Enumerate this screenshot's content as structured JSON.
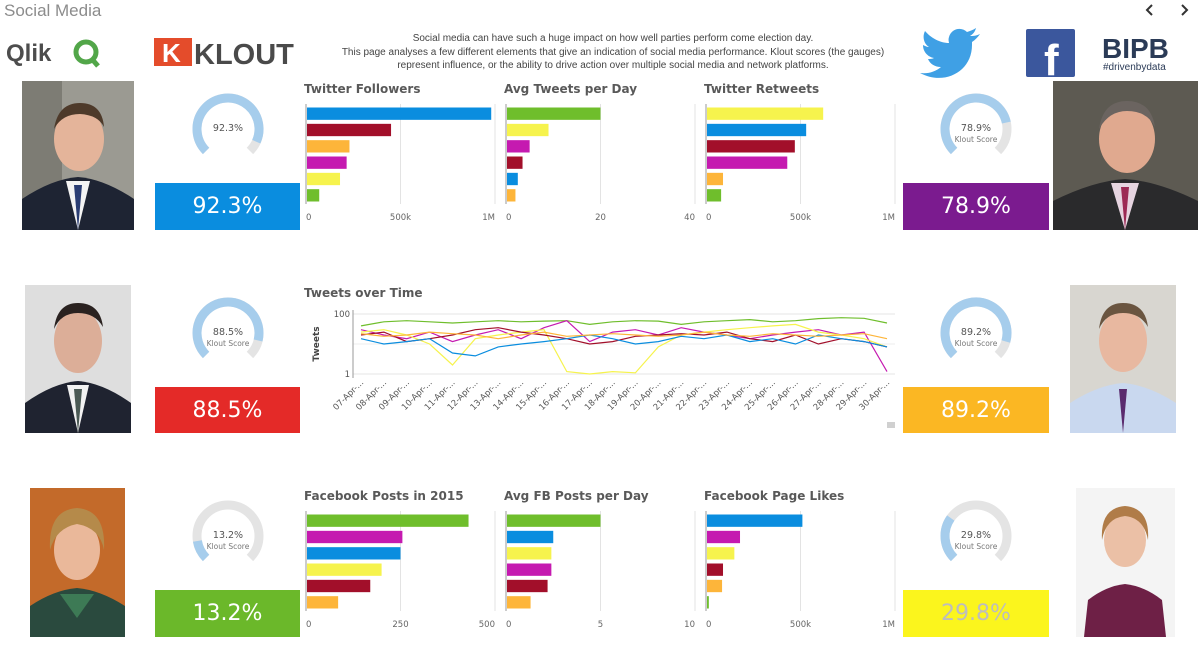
{
  "sheet": {
    "title": "Social Media",
    "prev_label": "‹",
    "next_label": "›"
  },
  "description": {
    "line1": "Social media can have such a huge impact on how well parties perform come election day.",
    "line2": "This page analyses a few different elements that give an indication of social media performance. Klout scores (the gauges)",
    "line3": "represent influence, or the ability to drive action over multiple social media and network platforms."
  },
  "logos": {
    "qlik": "Qlik",
    "klout_k": "K",
    "klout": "KLOUT",
    "facebook": "f",
    "bipb": "BIPB",
    "bipb_tag": "#drivenbydata"
  },
  "colors": {
    "blue": "#0a8ddf",
    "darkred": "#a20f2a",
    "orange": "#fdb53a",
    "magenta": "#c51ab0",
    "yellow": "#f6f34d",
    "green": "#6fbe2c",
    "red": "#e42a28",
    "amber": "#fbb723",
    "purple": "#7b1b8f",
    "lime": "#6bb82a",
    "brightyellow": "#fbf51d"
  },
  "klout": {
    "p1": {
      "gauge_label": "92.3%",
      "sublabel": "",
      "value": 0.923,
      "kpi": "92.3%"
    },
    "p2": {
      "gauge_label": "78.9%",
      "sublabel": "Klout Score",
      "value": 0.789,
      "kpi": "78.9%"
    },
    "p3": {
      "gauge_label": "88.5%",
      "sublabel": "Klout Score",
      "value": 0.885,
      "kpi": "88.5%"
    },
    "p4": {
      "gauge_label": "89.2%",
      "sublabel": "Klout Score",
      "value": 0.892,
      "kpi": "89.2%"
    },
    "p5": {
      "gauge_label": "13.2%",
      "sublabel": "Klout Score",
      "value": 0.132,
      "kpi": "13.2%"
    },
    "p6": {
      "gauge_label": "29.8%",
      "sublabel": "Klout Score",
      "value": 0.298,
      "kpi": "29.8%"
    }
  },
  "chart_data": [
    {
      "id": "twitter-followers",
      "type": "bar",
      "title": "Twitter Followers",
      "orientation": "horizontal",
      "xlim": [
        0,
        1000000
      ],
      "ticks": [
        0,
        500000,
        1000000
      ],
      "tick_labels": [
        "0",
        "500k",
        "1M"
      ],
      "values": [
        980000,
        450000,
        230000,
        215000,
        180000,
        70000
      ],
      "bar_colors": [
        "#0a8ddf",
        "#a20f2a",
        "#fdb53a",
        "#c51ab0",
        "#f6f34d",
        "#6fbe2c"
      ]
    },
    {
      "id": "avg-tweets",
      "type": "bar",
      "title": "Avg Tweets per Day",
      "orientation": "horizontal",
      "xlim": [
        0,
        40
      ],
      "ticks": [
        0,
        20,
        40
      ],
      "tick_labels": [
        "0",
        "20",
        "40"
      ],
      "values": [
        20,
        9,
        5,
        3.5,
        2.5,
        2
      ],
      "bar_colors": [
        "#6fbe2c",
        "#f6f34d",
        "#c51ab0",
        "#a20f2a",
        "#0a8ddf",
        "#fdb53a"
      ]
    },
    {
      "id": "twitter-retweets",
      "type": "bar",
      "title": "Twitter Retweets",
      "orientation": "horizontal",
      "xlim": [
        0,
        1000000
      ],
      "ticks": [
        0,
        500000,
        1000000
      ],
      "tick_labels": [
        "0",
        "500k",
        "1M"
      ],
      "values": [
        620000,
        530000,
        470000,
        430000,
        90000,
        80000
      ],
      "bar_colors": [
        "#f6f34d",
        "#0a8ddf",
        "#a20f2a",
        "#c51ab0",
        "#fdb53a",
        "#6fbe2c"
      ]
    },
    {
      "id": "tweets-over-time",
      "type": "line",
      "title": "Tweets over Time",
      "ylabel": "Tweets",
      "y_scale": "log",
      "ylim": [
        1,
        100
      ],
      "y_tick_labels": [
        "1",
        "100"
      ],
      "categories": [
        "07-Apr-...",
        "08-Apr-...",
        "09-Apr-...",
        "10-Apr-...",
        "11-Apr-...",
        "12-Apr-...",
        "13-Apr-...",
        "14-Apr-...",
        "15-Apr-...",
        "16-Apr-...",
        "17-Apr-...",
        "18-Apr-...",
        "19-Apr-...",
        "20-Apr-...",
        "21-Apr-...",
        "22-Apr-...",
        "23-Apr-...",
        "24-Apr-...",
        "25-Apr-...",
        "26-Apr-...",
        "27-Apr-...",
        "28-Apr-...",
        "29-Apr-...",
        "30-Apr-..."
      ],
      "series": [
        {
          "name": "green",
          "color": "#6fbe2c",
          "values": [
            40,
            55,
            60,
            55,
            50,
            55,
            60,
            55,
            58,
            60,
            45,
            55,
            60,
            58,
            45,
            55,
            60,
            65,
            55,
            60,
            70,
            75,
            72,
            50
          ]
        },
        {
          "name": "magenta",
          "color": "#c51ab0",
          "values": [
            30,
            20,
            15,
            25,
            12,
            20,
            30,
            15,
            35,
            60,
            12,
            25,
            30,
            20,
            35,
            25,
            20,
            15,
            20,
            25,
            30,
            20,
            25,
            1.2
          ]
        },
        {
          "name": "yellow",
          "color": "#f6f34d",
          "values": [
            25,
            30,
            20,
            10,
            2,
            15,
            20,
            25,
            30,
            1.2,
            1,
            1.2,
            1.1,
            8,
            20,
            25,
            30,
            35,
            40,
            45,
            25,
            20,
            15,
            8
          ]
        },
        {
          "name": "darkred",
          "color": "#a20f2a",
          "values": [
            20,
            25,
            12,
            15,
            20,
            30,
            35,
            25,
            20,
            15,
            10,
            12,
            18,
            20,
            22,
            20,
            25,
            15,
            12,
            20,
            10,
            15,
            12,
            8
          ]
        },
        {
          "name": "blue",
          "color": "#0a8ddf",
          "values": [
            15,
            10,
            12,
            15,
            5,
            4,
            8,
            10,
            12,
            15,
            20,
            15,
            10,
            12,
            18,
            15,
            20,
            12,
            15,
            10,
            20,
            15,
            12,
            8
          ]
        },
        {
          "name": "orange",
          "color": "#fdb53a",
          "values": [
            22,
            18,
            20,
            25,
            22,
            20,
            15,
            20,
            25,
            18,
            20,
            22,
            20,
            18,
            20,
            25,
            20,
            18,
            22,
            20,
            18,
            20,
            22,
            15
          ]
        }
      ]
    },
    {
      "id": "facebook-posts",
      "type": "bar",
      "title": "Facebook Posts in 2015",
      "orientation": "horizontal",
      "xlim": [
        0,
        500
      ],
      "ticks": [
        0,
        250,
        500
      ],
      "tick_labels": [
        "0",
        "250",
        "500"
      ],
      "values": [
        430,
        255,
        250,
        200,
        170,
        85
      ],
      "bar_colors": [
        "#6fbe2c",
        "#c51ab0",
        "#0a8ddf",
        "#f6f34d",
        "#a20f2a",
        "#fdb53a"
      ]
    },
    {
      "id": "avg-fb-posts",
      "type": "bar",
      "title": "Avg FB Posts per Day",
      "orientation": "horizontal",
      "xlim": [
        0,
        10
      ],
      "ticks": [
        0,
        5,
        10
      ],
      "tick_labels": [
        "0",
        "5",
        "10"
      ],
      "values": [
        5,
        2.5,
        2.4,
        2.4,
        2.2,
        1.3
      ],
      "bar_colors": [
        "#6fbe2c",
        "#0a8ddf",
        "#f6f34d",
        "#c51ab0",
        "#a20f2a",
        "#fdb53a"
      ]
    },
    {
      "id": "facebook-page-likes",
      "type": "bar",
      "title": "Facebook Page Likes",
      "orientation": "horizontal",
      "xlim": [
        0,
        1000000
      ],
      "ticks": [
        0,
        500000,
        1000000
      ],
      "tick_labels": [
        "0",
        "500k",
        "1M"
      ],
      "values": [
        510000,
        180000,
        150000,
        90000,
        85000,
        15000
      ],
      "bar_colors": [
        "#0a8ddf",
        "#c51ab0",
        "#f6f34d",
        "#a20f2a",
        "#fdb53a",
        "#6fbe2c"
      ]
    }
  ]
}
